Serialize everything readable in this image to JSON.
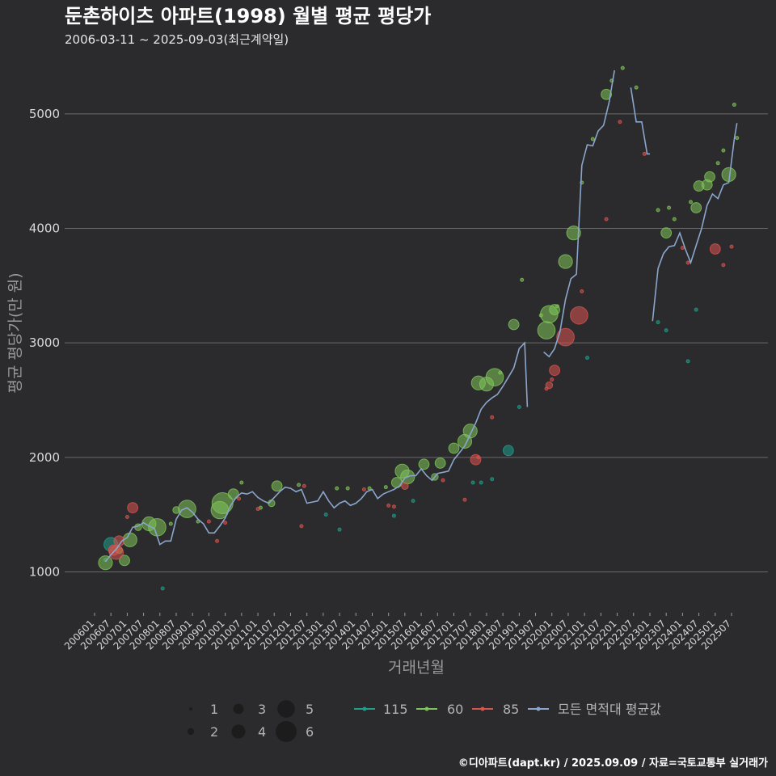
{
  "title": "둔촌하이츠 아파트(1998) 월별 평균 평당가",
  "subtitle": "2006-03-11 ~ 2025-09-03(최근계약일)",
  "footer": "©디아파트(dapt.kr) / 2025.09.09 / 자료=국토교통부 실거래가",
  "colors": {
    "background": "#2b2b2d",
    "grid": "#6a6a6a",
    "avg_line": "#8aa6cc",
    "area_115": "#1f9e8a",
    "area_60": "#7fc45a",
    "area_85": "#d9534f"
  },
  "chart_data": {
    "type": "scatter",
    "title": "둔촌하이츠 아파트(1998) 월별 평균 평당가",
    "subtitle": "2006-03-11 ~ 2025-09-03(최근계약일)",
    "xlabel": "거래년월",
    "ylabel": "평균 평당가(만 원)",
    "ylim": [
      700,
      5500
    ],
    "yticks": [
      1000,
      2000,
      3000,
      4000,
      5000
    ],
    "xticks": [
      "200601",
      "200607",
      "200701",
      "200707",
      "200801",
      "200807",
      "200901",
      "200907",
      "201001",
      "201007",
      "201101",
      "201107",
      "201201",
      "201207",
      "201301",
      "201307",
      "201401",
      "201407",
      "201501",
      "201507",
      "201601",
      "201607",
      "201701",
      "201707",
      "201801",
      "201807",
      "201901",
      "201907",
      "202001",
      "202007",
      "202101",
      "202107",
      "202201",
      "202207",
      "202301",
      "202307",
      "202401",
      "202407",
      "202501",
      "202507"
    ],
    "grid": "horizontal",
    "size_legend": {
      "title": "",
      "values": [
        1,
        2,
        3,
        4,
        5,
        6
      ]
    },
    "color_legend": {
      "title": "",
      "values": [
        "115",
        "60",
        "85",
        "모든 면적대 평균값"
      ]
    },
    "series": [
      {
        "name": "115",
        "color": "#1f9e8a",
        "points": [
          [
            "2006-05",
            1105,
            1
          ],
          [
            "2006-07",
            1240,
            4
          ],
          [
            "2008-02",
            855,
            1
          ],
          [
            "2013-02",
            1500,
            1
          ],
          [
            "2013-07",
            1370,
            1
          ],
          [
            "2015-03",
            1490,
            1
          ],
          [
            "2015-10",
            1620,
            1
          ],
          [
            "2017-08",
            1780,
            1
          ],
          [
            "2017-11",
            1780,
            1
          ],
          [
            "2018-03",
            1810,
            1
          ],
          [
            "2018-09",
            2060,
            3
          ],
          [
            "2019-01",
            2440,
            1
          ],
          [
            "2021-02",
            2870,
            1
          ],
          [
            "2023-04",
            3180,
            1
          ],
          [
            "2023-07",
            3110,
            1
          ],
          [
            "2024-03",
            2840,
            1
          ],
          [
            "2024-06",
            3290,
            1
          ]
        ]
      },
      {
        "name": "60",
        "color": "#7fc45a",
        "points": [
          [
            "2006-05",
            1080,
            4
          ],
          [
            "2006-10",
            1190,
            2
          ],
          [
            "2006-12",
            1100,
            3
          ],
          [
            "2007-02",
            1280,
            4
          ],
          [
            "2007-05",
            1390,
            2
          ],
          [
            "2007-09",
            1420,
            4
          ],
          [
            "2007-12",
            1390,
            5
          ],
          [
            "2008-05",
            1420,
            1
          ],
          [
            "2008-07",
            1540,
            2
          ],
          [
            "2008-11",
            1550,
            5
          ],
          [
            "2009-03",
            1440,
            1
          ],
          [
            "2009-11",
            1540,
            5
          ],
          [
            "2009-12",
            1600,
            6
          ],
          [
            "2010-04",
            1680,
            3
          ],
          [
            "2010-07",
            1780,
            1
          ],
          [
            "2011-02",
            1560,
            1
          ],
          [
            "2011-06",
            1600,
            2
          ],
          [
            "2011-08",
            1750,
            3
          ],
          [
            "2012-04",
            1760,
            1
          ],
          [
            "2013-06",
            1730,
            1
          ],
          [
            "2013-10",
            1730,
            1
          ],
          [
            "2014-06",
            1730,
            1
          ],
          [
            "2014-12",
            1740,
            1
          ],
          [
            "2015-04",
            1780,
            3
          ],
          [
            "2015-06",
            1880,
            4
          ],
          [
            "2015-08",
            1830,
            4
          ],
          [
            "2016-02",
            1940,
            3
          ],
          [
            "2016-06",
            1830,
            2
          ],
          [
            "2016-08",
            1950,
            3
          ],
          [
            "2017-01",
            2080,
            3
          ],
          [
            "2017-05",
            2140,
            4
          ],
          [
            "2017-07",
            2230,
            4
          ],
          [
            "2017-10",
            2650,
            4
          ],
          [
            "2018-01",
            2640,
            4
          ],
          [
            "2018-04",
            2700,
            5
          ],
          [
            "2018-06",
            2740,
            1
          ],
          [
            "2018-11",
            3160,
            3
          ],
          [
            "2019-02",
            3550,
            1
          ],
          [
            "2019-09",
            3240,
            1
          ],
          [
            "2019-11",
            3110,
            5
          ],
          [
            "2019-12",
            3250,
            5
          ],
          [
            "2020-02",
            3290,
            3
          ],
          [
            "2020-03",
            3320,
            1
          ],
          [
            "2020-06",
            3710,
            4
          ],
          [
            "2020-09",
            3960,
            4
          ],
          [
            "2020-12",
            4400,
            1
          ],
          [
            "2021-04",
            4780,
            1
          ],
          [
            "2021-09",
            5170,
            3
          ],
          [
            "2021-11",
            5290,
            1
          ],
          [
            "2022-03",
            5400,
            1
          ],
          [
            "2022-08",
            5230,
            1
          ],
          [
            "2023-04",
            4160,
            1
          ],
          [
            "2023-07",
            3960,
            3
          ],
          [
            "2023-08",
            4180,
            1
          ],
          [
            "2023-10",
            4080,
            1
          ],
          [
            "2024-04",
            4230,
            1
          ],
          [
            "2024-06",
            4180,
            3
          ],
          [
            "2024-07",
            4370,
            3
          ],
          [
            "2024-10",
            4380,
            3
          ],
          [
            "2024-11",
            4450,
            3
          ],
          [
            "2025-02",
            4570,
            1
          ],
          [
            "2025-04",
            4680,
            1
          ],
          [
            "2025-06",
            4470,
            4
          ],
          [
            "2025-08",
            5080,
            1
          ],
          [
            "2025-09",
            4790,
            1
          ]
        ]
      },
      {
        "name": "85",
        "color": "#d9534f",
        "points": [
          [
            "2006-08",
            1190,
            3
          ],
          [
            "2006-09",
            1170,
            4
          ],
          [
            "2006-10",
            1270,
            3
          ],
          [
            "2007-01",
            1480,
            1
          ],
          [
            "2007-03",
            1560,
            3
          ],
          [
            "2009-07",
            1440,
            1
          ],
          [
            "2009-10",
            1270,
            1
          ],
          [
            "2010-01",
            1430,
            1
          ],
          [
            "2010-06",
            1640,
            1
          ],
          [
            "2011-01",
            1550,
            1
          ],
          [
            "2012-05",
            1400,
            1
          ],
          [
            "2012-06",
            1750,
            1
          ],
          [
            "2014-04",
            1720,
            1
          ],
          [
            "2015-01",
            1580,
            1
          ],
          [
            "2015-03",
            1570,
            1
          ],
          [
            "2015-07",
            1750,
            2
          ],
          [
            "2016-09",
            1800,
            1
          ],
          [
            "2017-05",
            1630,
            1
          ],
          [
            "2017-09",
            1980,
            3
          ],
          [
            "2017-10",
            2000,
            1
          ],
          [
            "2018-03",
            2350,
            1
          ],
          [
            "2019-11",
            2600,
            1
          ],
          [
            "2019-12",
            2630,
            2
          ],
          [
            "2020-01",
            2680,
            1
          ],
          [
            "2020-02",
            2760,
            3
          ],
          [
            "2020-06",
            3050,
            5
          ],
          [
            "2020-11",
            3240,
            5
          ],
          [
            "2020-12",
            3450,
            1
          ],
          [
            "2021-09",
            4080,
            1
          ],
          [
            "2022-02",
            4930,
            1
          ],
          [
            "2022-11",
            4650,
            1
          ],
          [
            "2024-01",
            3830,
            1
          ],
          [
            "2024-03",
            3700,
            1
          ],
          [
            "2025-01",
            3820,
            3
          ],
          [
            "2025-04",
            3680,
            1
          ],
          [
            "2025-07",
            3840,
            1
          ]
        ]
      }
    ],
    "average_line": {
      "name": "모든 면적대 평균값",
      "segments": [
        [
          [
            "2006-05",
            1090
          ],
          [
            "2006-07",
            1150
          ],
          [
            "2006-09",
            1200
          ],
          [
            "2006-11",
            1270
          ],
          [
            "2007-01",
            1300
          ],
          [
            "2007-03",
            1390
          ],
          [
            "2007-05",
            1400
          ],
          [
            "2007-07",
            1430
          ],
          [
            "2007-09",
            1400
          ],
          [
            "2007-11",
            1380
          ],
          [
            "2008-01",
            1240
          ],
          [
            "2008-03",
            1270
          ],
          [
            "2008-05",
            1270
          ],
          [
            "2008-07",
            1460
          ],
          [
            "2008-09",
            1540
          ],
          [
            "2008-11",
            1560
          ],
          [
            "2009-01",
            1520
          ],
          [
            "2009-03",
            1460
          ],
          [
            "2009-05",
            1420
          ],
          [
            "2009-07",
            1340
          ],
          [
            "2009-09",
            1340
          ],
          [
            "2009-11",
            1400
          ],
          [
            "2010-01",
            1470
          ],
          [
            "2010-03",
            1580
          ],
          [
            "2010-05",
            1650
          ],
          [
            "2010-07",
            1690
          ],
          [
            "2010-09",
            1680
          ],
          [
            "2010-11",
            1700
          ],
          [
            "2011-01",
            1650
          ],
          [
            "2011-03",
            1620
          ],
          [
            "2011-05",
            1600
          ],
          [
            "2011-07",
            1650
          ],
          [
            "2011-09",
            1700
          ],
          [
            "2011-11",
            1740
          ],
          [
            "2012-01",
            1730
          ],
          [
            "2012-03",
            1700
          ],
          [
            "2012-05",
            1720
          ],
          [
            "2012-07",
            1600
          ],
          [
            "2012-09",
            1610
          ],
          [
            "2012-11",
            1620
          ],
          [
            "2013-01",
            1700
          ],
          [
            "2013-03",
            1620
          ],
          [
            "2013-05",
            1560
          ],
          [
            "2013-07",
            1600
          ],
          [
            "2013-09",
            1620
          ],
          [
            "2013-11",
            1580
          ],
          [
            "2014-01",
            1600
          ],
          [
            "2014-03",
            1640
          ],
          [
            "2014-05",
            1700
          ],
          [
            "2014-07",
            1720
          ],
          [
            "2014-09",
            1640
          ],
          [
            "2014-11",
            1680
          ],
          [
            "2015-01",
            1700
          ],
          [
            "2015-03",
            1720
          ],
          [
            "2015-05",
            1750
          ],
          [
            "2015-07",
            1820
          ],
          [
            "2015-09",
            1840
          ],
          [
            "2015-11",
            1840
          ],
          [
            "2016-01",
            1900
          ],
          [
            "2016-03",
            1840
          ],
          [
            "2016-05",
            1800
          ],
          [
            "2016-07",
            1860
          ],
          [
            "2016-09",
            1870
          ],
          [
            "2016-11",
            1880
          ],
          [
            "2017-01",
            1980
          ],
          [
            "2017-03",
            2040
          ],
          [
            "2017-05",
            2100
          ],
          [
            "2017-07",
            2200
          ],
          [
            "2017-09",
            2300
          ],
          [
            "2017-11",
            2420
          ],
          [
            "2018-01",
            2480
          ],
          [
            "2018-03",
            2520
          ],
          [
            "2018-05",
            2550
          ],
          [
            "2018-07",
            2620
          ],
          [
            "2018-09",
            2700
          ],
          [
            "2018-11",
            2780
          ],
          [
            "2019-01",
            2950
          ],
          [
            "2019-03",
            3000
          ],
          [
            "2019-04",
            2440
          ]
        ],
        [
          [
            "2019-10",
            2920
          ],
          [
            "2019-12",
            2880
          ],
          [
            "2020-02",
            2950
          ],
          [
            "2020-04",
            3100
          ],
          [
            "2020-06",
            3380
          ],
          [
            "2020-08",
            3560
          ],
          [
            "2020-10",
            3600
          ],
          [
            "2020-12",
            4550
          ],
          [
            "2021-02",
            4730
          ],
          [
            "2021-04",
            4720
          ],
          [
            "2021-06",
            4850
          ],
          [
            "2021-08",
            4900
          ],
          [
            "2021-10",
            5100
          ],
          [
            "2021-12",
            5380
          ]
        ],
        [
          [
            "2022-06",
            5230
          ],
          [
            "2022-08",
            4930
          ],
          [
            "2022-10",
            4930
          ],
          [
            "2022-12",
            4650
          ],
          [
            "2023-01",
            4650
          ]
        ],
        [
          [
            "2023-02",
            3190
          ],
          [
            "2023-04",
            3650
          ],
          [
            "2023-06",
            3780
          ],
          [
            "2023-08",
            3840
          ],
          [
            "2023-10",
            3850
          ],
          [
            "2023-12",
            3960
          ],
          [
            "2024-02",
            3820
          ],
          [
            "2024-04",
            3700
          ],
          [
            "2024-06",
            3850
          ],
          [
            "2024-08",
            4000
          ],
          [
            "2024-10",
            4200
          ],
          [
            "2024-12",
            4300
          ],
          [
            "2025-02",
            4260
          ],
          [
            "2025-04",
            4380
          ],
          [
            "2025-06",
            4400
          ],
          [
            "2025-08",
            4780
          ],
          [
            "2025-09",
            4920
          ]
        ]
      ]
    }
  }
}
